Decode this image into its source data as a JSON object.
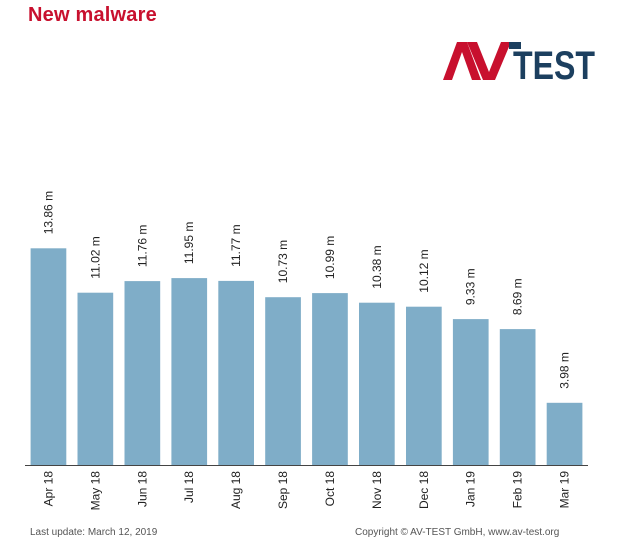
{
  "title": "New malware",
  "logo": {
    "text_a": "AV",
    "text_b": "TEST",
    "color_a": "#c8102e",
    "color_b": "#1c3f5f"
  },
  "colors": {
    "bar": "#7fadc8",
    "axis": "#444444",
    "title": "#c8102e"
  },
  "footer": {
    "last_update": "Last update: March 12,  2019",
    "copyright": "Copyright © AV-TEST GmbH, www.av-test.org"
  },
  "chart_data": {
    "type": "bar",
    "categories": [
      "Apr 18",
      "May 18",
      "Jun 18",
      "Jul 18",
      "Aug 18",
      "Sep 18",
      "Oct 18",
      "Nov 18",
      "Dec 18",
      "Jan 19",
      "Feb 19",
      "Mar 19"
    ],
    "values": [
      13.86,
      11.02,
      11.76,
      11.95,
      11.77,
      10.73,
      10.99,
      10.38,
      10.12,
      9.33,
      8.69,
      3.98
    ],
    "labels": [
      "13.86 m",
      "11.02 m",
      "11.76 m",
      "11.95 m",
      "11.77 m",
      "10.73 m",
      "10.99 m",
      "10.38 m",
      "10.12 m",
      "9.33 m",
      "8.69 m",
      "3.98 m"
    ],
    "unit": "m",
    "ylim": [
      0,
      14.9
    ],
    "grid": false,
    "legend": "none"
  }
}
